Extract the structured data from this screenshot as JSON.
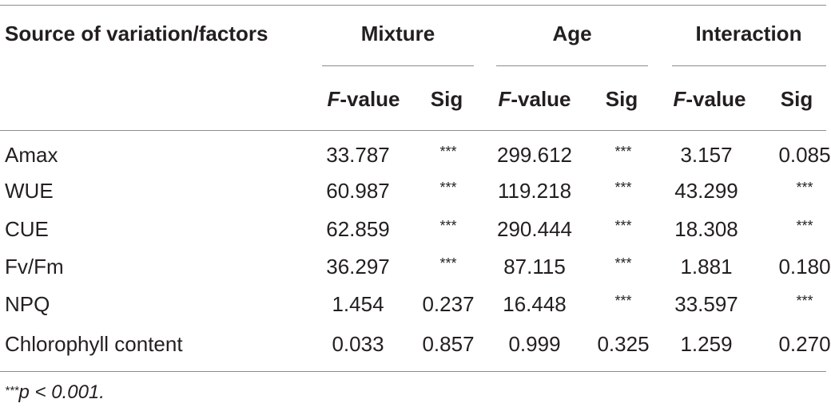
{
  "table": {
    "stub_header": "Source of variation/factors",
    "groups": [
      {
        "label": "Mixture"
      },
      {
        "label": "Age"
      },
      {
        "label": "Interaction"
      }
    ],
    "sub_header": {
      "f_letter": "F",
      "f_suffix": "-value",
      "sig": "Sig"
    },
    "rows": [
      {
        "label": "Amax",
        "values": [
          "33.787",
          "***",
          "299.612",
          "***",
          "3.157",
          "0.085"
        ]
      },
      {
        "label": "WUE",
        "values": [
          "60.987",
          "***",
          "119.218",
          "***",
          "43.299",
          "***"
        ]
      },
      {
        "label": "CUE",
        "values": [
          "62.859",
          "***",
          "290.444",
          "***",
          "18.308",
          "***"
        ]
      },
      {
        "label": "Fv/Fm",
        "values": [
          "36.297",
          "***",
          "87.115",
          "***",
          "1.881",
          "0.180"
        ]
      },
      {
        "label": "NPQ",
        "values": [
          "1.454",
          "0.237",
          "16.448",
          "***",
          "33.597",
          "***"
        ]
      },
      {
        "label": "Chlorophyll content",
        "values": [
          "0.033",
          "0.857",
          "0.999",
          "0.325",
          "1.259",
          "0.270"
        ]
      }
    ]
  },
  "footnote": {
    "marker": "***",
    "text": "p < 0.001."
  }
}
